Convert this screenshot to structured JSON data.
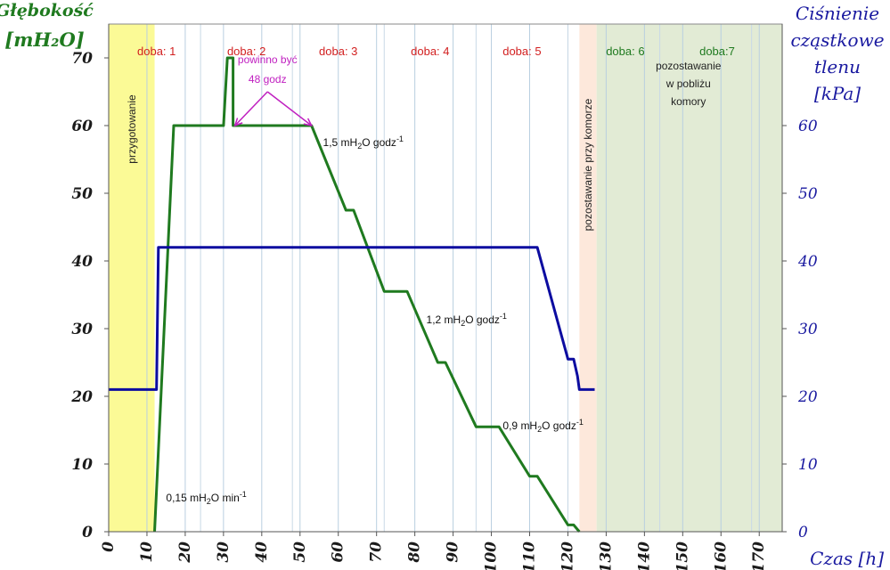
{
  "chart_data": {
    "type": "line",
    "ylabel_left": [
      "Głębokość",
      "[mH₂O]"
    ],
    "ylabel_right": [
      "Ciśnienie",
      "cząstkowe",
      "tlenu",
      "[kPa]"
    ],
    "xlabel": "Czas [h]",
    "xlim": [
      0,
      176
    ],
    "ylim_left": [
      0,
      75
    ],
    "ylim_right": [
      0,
      75
    ],
    "x_ticks": [
      0,
      10,
      20,
      30,
      40,
      50,
      60,
      70,
      80,
      90,
      100,
      110,
      120,
      130,
      140,
      150,
      160,
      170
    ],
    "y_ticks_left": [
      0,
      10,
      20,
      30,
      40,
      50,
      60,
      70
    ],
    "y_ticks_right": [
      0,
      10,
      20,
      30,
      40,
      50,
      60
    ],
    "grid_x": true,
    "grid_y": false,
    "day_gridlines": [
      24,
      48,
      72,
      96,
      120,
      144,
      168
    ],
    "regions": [
      {
        "x0": 0,
        "x1": 12,
        "color": "#fbfa96",
        "label": "przygotowanie",
        "vertical": true
      },
      {
        "x0": 123,
        "x1": 127.5,
        "color": "#fde8db",
        "label": "pozostawanie przy komorze",
        "vertical": true
      },
      {
        "x0": 127.5,
        "x1": 176,
        "color": "#e2ebd5",
        "label": "",
        "vertical": false
      }
    ],
    "day_labels": [
      {
        "x": 12.5,
        "label": "doba: 1",
        "color": "#d22020"
      },
      {
        "x": 36,
        "label": "doba: 2",
        "color": "#d22020"
      },
      {
        "x": 60,
        "label": "doba: 3",
        "color": "#d22020"
      },
      {
        "x": 84,
        "label": "doba: 4",
        "color": "#d22020"
      },
      {
        "x": 108,
        "label": "doba: 5",
        "color": "#d22020"
      },
      {
        "x": 135,
        "label": "doba: 6",
        "color": "#1f7a1f"
      },
      {
        "x": 159,
        "label": "doba:7",
        "color": "#1f7a1f"
      }
    ],
    "series": [
      {
        "name": "",
        "axis": "left",
        "color": "#1f7a1f",
        "points": [
          [
            12,
            0
          ],
          [
            17,
            60
          ],
          [
            30,
            60
          ],
          [
            31,
            70
          ],
          [
            32.5,
            70
          ],
          [
            32.5,
            60
          ],
          [
            53,
            60
          ],
          [
            62,
            47.5
          ],
          [
            64,
            47.5
          ],
          [
            72,
            35.5
          ],
          [
            78,
            35.5
          ],
          [
            86,
            25
          ],
          [
            88,
            25
          ],
          [
            96,
            15.5
          ],
          [
            102,
            15.5
          ],
          [
            110,
            8.2
          ],
          [
            112,
            8.2
          ],
          [
            120,
            1
          ],
          [
            121.5,
            1
          ],
          [
            123,
            0
          ]
        ]
      },
      {
        "name": "",
        "axis": "right",
        "color": "#0c0ca0",
        "points": [
          [
            0,
            21
          ],
          [
            12.5,
            21
          ],
          [
            13,
            42
          ],
          [
            112,
            42
          ],
          [
            120,
            25.5
          ],
          [
            121.5,
            25.5
          ],
          [
            122.5,
            23
          ],
          [
            123,
            21
          ],
          [
            127,
            21
          ]
        ]
      }
    ],
    "annotations": [
      {
        "x": 15,
        "y": 4.5,
        "text": "0,15 mH",
        "sub": "2",
        "rest": "O min",
        "sup": "-1",
        "cls": "ann"
      },
      {
        "x": 56,
        "y": 57,
        "text": "1,5 mH",
        "sub": "2",
        "rest": "O godz",
        "sup": "-1",
        "cls": "ann"
      },
      {
        "x": 83,
        "y": 30.8,
        "text": "1,2 mH",
        "sub": "2",
        "rest": "O godz",
        "sup": "-1",
        "cls": "ann"
      },
      {
        "x": 103,
        "y": 15.1,
        "text": "0,9 mH",
        "sub": "2",
        "rest": "O godz",
        "sup": "-1",
        "cls": "ann"
      }
    ],
    "callout": {
      "lines": [
        "powinno być",
        "48 godz"
      ],
      "text_x": 41.5,
      "text_y1": 69.2,
      "text_y2": 66.3,
      "apex": [
        41.5,
        65
      ],
      "arrow_left": [
        33,
        60
      ],
      "arrow_right": [
        53,
        60
      ],
      "color": "#c020c0"
    },
    "region_texts": [
      {
        "x": 151.5,
        "y": 68.3,
        "lines": [
          "pozostawanie",
          "w pobliżu",
          "komory"
        ]
      }
    ]
  }
}
